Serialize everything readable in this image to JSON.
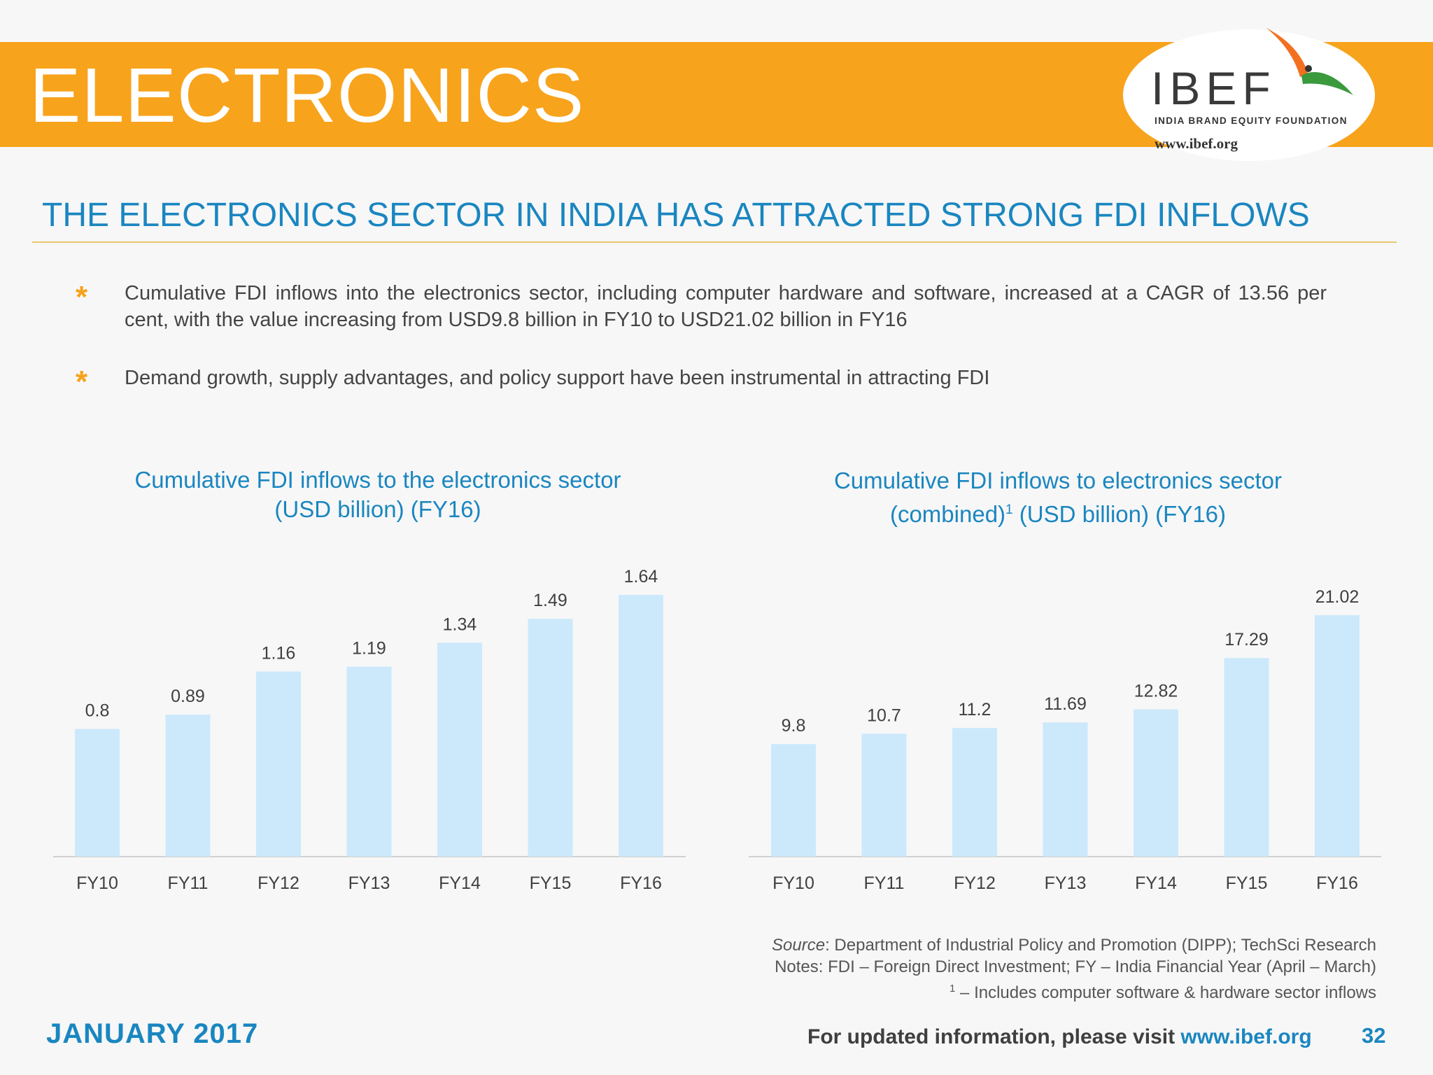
{
  "header": {
    "title": "ELECTRONICS",
    "logo": {
      "wordmark": "IBEF",
      "subtitle": "INDIA BRAND EQUITY FOUNDATION",
      "url": "www.ibef.org",
      "icon": "bird-logo-icon",
      "colors": {
        "saffron": "#f37021",
        "green": "#3a9a3c"
      }
    }
  },
  "headline": "THE ELECTRONICS SECTOR IN INDIA HAS ATTRACTED STRONG FDI INFLOWS",
  "bullets": [
    {
      "marker": "*",
      "text": "Cumulative FDI inflows into the electronics sector, including computer hardware and software, increased at a CAGR of 13.56 per cent, with the value increasing from USD9.8 billion in FY10 to USD21.02 billion in FY16"
    },
    {
      "marker": "*",
      "text": "Demand growth, supply advantages, and policy support have been instrumental in attracting FDI"
    }
  ],
  "chart_titles": {
    "left": {
      "line1": "Cumulative FDI inflows to the electronics sector",
      "line2": "(USD billion) (FY16)"
    },
    "right": {
      "line1": "Cumulative FDI inflows to electronics sector",
      "line2_a": "(combined)",
      "line2_sup": "1",
      "line2_b": " (USD billion) (FY16)"
    }
  },
  "chart_data": [
    {
      "type": "bar",
      "title": "Cumulative FDI inflows to the electronics sector (USD billion) (FY16)",
      "categories": [
        "FY10",
        "FY11",
        "FY12",
        "FY13",
        "FY14",
        "FY15",
        "FY16"
      ],
      "values": [
        0.8,
        0.89,
        1.16,
        1.19,
        1.34,
        1.49,
        1.64
      ],
      "labels": [
        "0.8",
        "0.89",
        "1.16",
        "1.19",
        "1.34",
        "1.49",
        "1.64"
      ],
      "xlabel": "",
      "ylabel": "",
      "ylim": [
        0,
        1.64
      ],
      "grid": false,
      "legend": "none",
      "bar_color": "#cce9fb",
      "axis_color": "#d0d0d0"
    },
    {
      "type": "bar",
      "title": "Cumulative FDI inflows to electronics sector (combined)1 (USD billion) (FY16)",
      "categories": [
        "FY10",
        "FY11",
        "FY12",
        "FY13",
        "FY14",
        "FY15",
        "FY16"
      ],
      "values": [
        9.8,
        10.7,
        11.2,
        11.69,
        12.82,
        17.29,
        21.02
      ],
      "labels": [
        "9.8",
        "10.7",
        "11.2",
        "11.69",
        "12.82",
        "17.29",
        "21.02"
      ],
      "xlabel": "",
      "ylabel": "",
      "ylim": [
        0,
        21.02
      ],
      "grid": false,
      "legend": "none",
      "bar_color": "#cce9fb",
      "axis_color": "#d0d0d0"
    }
  ],
  "source": {
    "label": "Source",
    "text": ": Department of Industrial Policy and Promotion (DIPP); TechSci Research",
    "notes": "Notes: FDI – Foreign Direct Investment; FY – India Financial Year (April – March)",
    "footnote_mark": "1",
    "footnote": " – Includes computer software & hardware sector inflows"
  },
  "footer": {
    "date": "JANUARY 2017",
    "visit_text": "For updated information, please visit ",
    "visit_url": "www.ibef.org",
    "page": "32"
  }
}
